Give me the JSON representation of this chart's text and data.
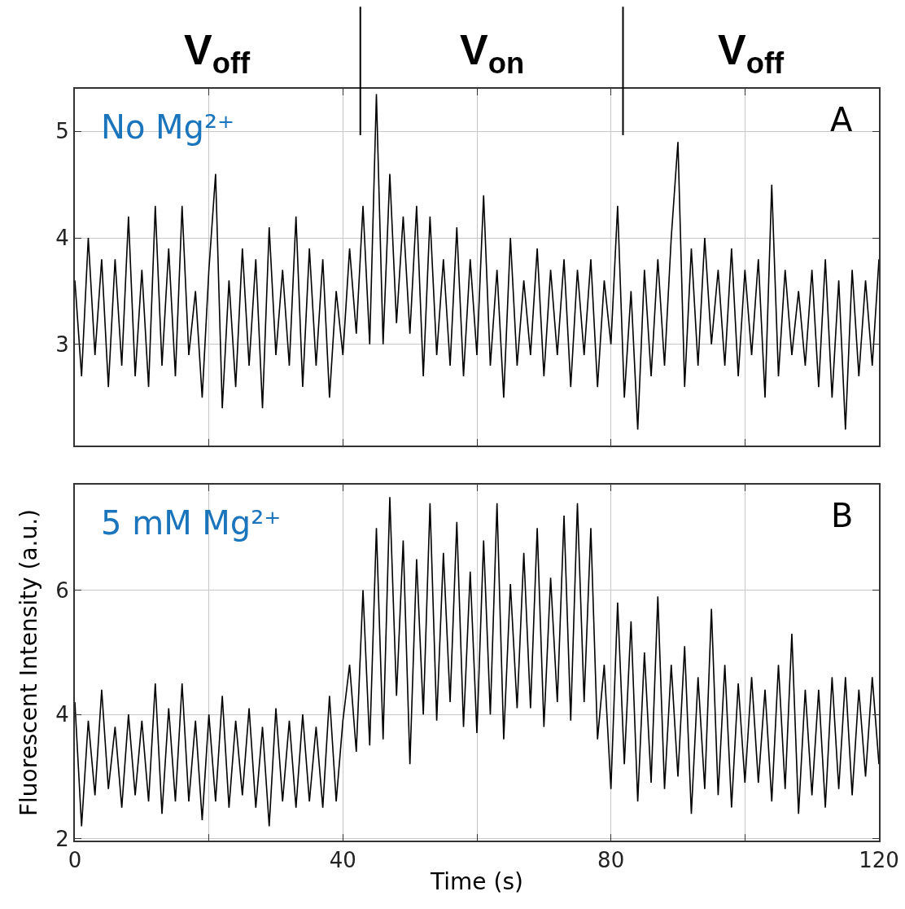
{
  "chart_data": [
    {
      "type": "line",
      "color": "#000000",
      "x": [
        0,
        1,
        2,
        3,
        4,
        5,
        6,
        7,
        8,
        9,
        10,
        11,
        12,
        13,
        14,
        15,
        16,
        17,
        18,
        19,
        20,
        21,
        22,
        23,
        24,
        25,
        26,
        27,
        28,
        29,
        30,
        31,
        32,
        33,
        34,
        35,
        36,
        37,
        38,
        39,
        40,
        41,
        42,
        43,
        44,
        45,
        46,
        47,
        48,
        49,
        50,
        51,
        52,
        53,
        54,
        55,
        56,
        57,
        58,
        59,
        60,
        61,
        62,
        63,
        64,
        65,
        66,
        67,
        68,
        69,
        70,
        71,
        72,
        73,
        74,
        75,
        76,
        77,
        78,
        79,
        80,
        81,
        82,
        83,
        84,
        85,
        86,
        87,
        88,
        89,
        90,
        91,
        92,
        93,
        94,
        95,
        96,
        97,
        98,
        99,
        100,
        101,
        102,
        103,
        104,
        105,
        106,
        107,
        108,
        109,
        110,
        111,
        112,
        113,
        114,
        115,
        116,
        117,
        118,
        119,
        120
      ],
      "values": [
        3.6,
        2.7,
        4.0,
        2.9,
        3.8,
        2.6,
        3.8,
        2.8,
        4.2,
        2.7,
        3.7,
        2.6,
        4.3,
        2.8,
        3.9,
        2.7,
        4.3,
        2.9,
        3.5,
        2.5,
        3.7,
        4.6,
        2.4,
        3.6,
        2.6,
        3.9,
        2.8,
        3.8,
        2.4,
        4.1,
        2.9,
        3.7,
        2.8,
        4.2,
        2.6,
        3.9,
        2.8,
        3.8,
        2.5,
        3.5,
        2.9,
        3.9,
        3.1,
        4.3,
        3.0,
        5.35,
        3.0,
        4.6,
        3.2,
        4.2,
        3.1,
        4.3,
        2.7,
        4.2,
        2.9,
        3.8,
        2.8,
        4.1,
        2.7,
        3.8,
        2.9,
        4.4,
        2.8,
        3.7,
        2.5,
        4.0,
        2.8,
        3.6,
        2.9,
        3.9,
        2.7,
        3.7,
        2.9,
        3.8,
        2.6,
        3.7,
        2.9,
        3.8,
        2.6,
        3.6,
        3.0,
        4.3,
        2.5,
        3.5,
        2.2,
        3.7,
        2.7,
        3.8,
        2.8,
        4.0,
        4.9,
        2.6,
        3.9,
        2.8,
        4.0,
        3.0,
        3.7,
        2.8,
        3.9,
        2.7,
        3.7,
        2.9,
        3.8,
        2.5,
        4.5,
        2.7,
        3.7,
        2.9,
        3.5,
        2.8,
        3.7,
        2.6,
        3.8,
        2.5,
        3.6,
        2.2,
        3.7,
        2.7,
        3.6,
        2.8,
        3.8
      ],
      "xlim": [
        0,
        120
      ],
      "ylim": [
        2.05,
        5.4
      ],
      "xticks": [
        0,
        {
          "value": 20,
          "label": null
        },
        40,
        {
          "value": 60,
          "label": null
        },
        80,
        {
          "value": 100,
          "label": null
        },
        120
      ],
      "yticks": [
        3,
        4,
        5
      ],
      "grid": true,
      "tick_labels": "y",
      "ref_lines": [
        {
          "axis": "x",
          "value": 42.6,
          "color": "#000000"
        },
        {
          "axis": "x",
          "value": 81.8,
          "color": "#000000"
        }
      ],
      "annotations": [
        "V$_{off}$",
        "V$_{on}$",
        "V$_{off}$",
        "No Mg²⁺",
        "A"
      ]
    },
    {
      "type": "line",
      "color": "#000000",
      "x": [
        0,
        1,
        2,
        3,
        4,
        5,
        6,
        7,
        8,
        9,
        10,
        11,
        12,
        13,
        14,
        15,
        16,
        17,
        18,
        19,
        20,
        21,
        22,
        23,
        24,
        25,
        26,
        27,
        28,
        29,
        30,
        31,
        32,
        33,
        34,
        35,
        36,
        37,
        38,
        39,
        40,
        41,
        42,
        43,
        44,
        45,
        46,
        47,
        48,
        49,
        50,
        51,
        52,
        53,
        54,
        55,
        56,
        57,
        58,
        59,
        60,
        61,
        62,
        63,
        64,
        65,
        66,
        67,
        68,
        69,
        70,
        71,
        72,
        73,
        74,
        75,
        76,
        77,
        78,
        79,
        80,
        81,
        82,
        83,
        84,
        85,
        86,
        87,
        88,
        89,
        90,
        91,
        92,
        93,
        94,
        95,
        96,
        97,
        98,
        99,
        100,
        101,
        102,
        103,
        104,
        105,
        106,
        107,
        108,
        109,
        110,
        111,
        112,
        113,
        114,
        115,
        116,
        117,
        118,
        119,
        120
      ],
      "values": [
        4.2,
        2.2,
        3.9,
        2.7,
        4.4,
        2.8,
        3.8,
        2.5,
        4.0,
        2.7,
        3.9,
        2.6,
        4.5,
        2.4,
        4.1,
        2.6,
        4.5,
        2.6,
        3.9,
        2.3,
        4.0,
        2.6,
        4.3,
        2.5,
        3.9,
        2.7,
        4.1,
        2.5,
        3.8,
        2.2,
        4.1,
        2.6,
        3.9,
        2.5,
        4.0,
        2.6,
        3.8,
        2.5,
        4.3,
        2.6,
        3.9,
        4.8,
        3.4,
        6.0,
        3.5,
        7.0,
        3.6,
        7.5,
        4.3,
        6.8,
        3.2,
        6.5,
        4.0,
        7.4,
        3.9,
        6.6,
        4.2,
        7.1,
        3.8,
        6.3,
        3.7,
        6.8,
        4.0,
        7.4,
        3.6,
        6.1,
        4.1,
        6.6,
        4.1,
        7.0,
        3.8,
        6.2,
        4.2,
        7.2,
        3.9,
        7.4,
        4.2,
        7.0,
        3.6,
        4.8,
        2.8,
        5.8,
        3.2,
        5.5,
        2.6,
        5.0,
        2.9,
        5.9,
        2.8,
        4.8,
        3.0,
        5.1,
        2.4,
        4.6,
        2.8,
        5.7,
        2.7,
        4.8,
        2.5,
        4.5,
        2.9,
        4.6,
        2.9,
        4.4,
        2.6,
        4.8,
        2.8,
        5.3,
        2.4,
        4.4,
        2.7,
        4.4,
        2.5,
        4.6,
        2.8,
        4.6,
        2.7,
        4.4,
        3.0,
        4.6,
        3.2
      ],
      "xlim": [
        0,
        120
      ],
      "ylim": [
        1.97,
        7.7
      ],
      "xticks": [
        0,
        {
          "value": 20,
          "label": null
        },
        40,
        {
          "value": 60,
          "label": null
        },
        80,
        {
          "value": 100,
          "label": null
        },
        120
      ],
      "yticks": [
        2,
        4,
        6
      ],
      "grid": true,
      "xlabel": "Time (s)",
      "ylabel": "Fluorescent Intensity (a.u.)",
      "annotations": [
        "5 mM Mg²⁺",
        "B"
      ]
    }
  ]
}
